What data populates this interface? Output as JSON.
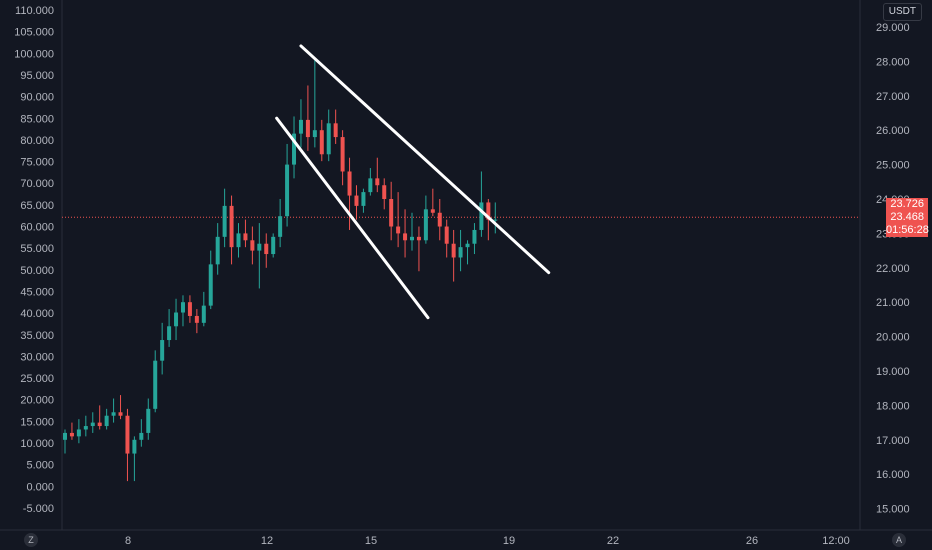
{
  "colors": {
    "background": "#131722",
    "up": "#26a69a",
    "down": "#ef5350",
    "axis_text": "#b2b5be",
    "trendline": "#ffffff",
    "price_line": "#ef5350"
  },
  "left_scale": {
    "ticks": [
      "110.000",
      "105.000",
      "100.000",
      "95.000",
      "90.000",
      "85.000",
      "80.000",
      "75.000",
      "70.000",
      "65.000",
      "60.000",
      "55.000",
      "50.000",
      "45.000",
      "40.000",
      "35.000",
      "30.000",
      "25.000",
      "20.000",
      "15.000",
      "10.000",
      "5.000",
      "0.000",
      "-5.000"
    ]
  },
  "right_scale": {
    "currency_label": "USDT",
    "ticks": [
      "29.000",
      "28.000",
      "27.000",
      "26.000",
      "25.000",
      "24.000",
      "23.000",
      "22.000",
      "21.000",
      "20.000",
      "19.000",
      "18.000",
      "17.000",
      "16.000",
      "15.000"
    ],
    "price_tags": [
      "23.726",
      "23.468",
      "01:56:28"
    ]
  },
  "time_axis": {
    "ticks": [
      "8",
      "12",
      "15",
      "19",
      "22",
      "26",
      "12:00"
    ]
  },
  "buttons": {
    "left_corner": "Z",
    "right_corner": "A"
  },
  "chart_data": {
    "type": "candlestick",
    "title": "",
    "right_ylim": [
      14.5,
      29.6
    ],
    "current_price": 23.468,
    "candles_right_scale": [
      {
        "o": 17.0,
        "h": 17.3,
        "l": 16.6,
        "c": 17.2
      },
      {
        "o": 17.2,
        "h": 17.5,
        "l": 17.0,
        "c": 17.1
      },
      {
        "o": 17.1,
        "h": 17.6,
        "l": 16.9,
        "c": 17.3
      },
      {
        "o": 17.3,
        "h": 17.7,
        "l": 17.1,
        "c": 17.4
      },
      {
        "o": 17.4,
        "h": 17.8,
        "l": 17.2,
        "c": 17.5
      },
      {
        "o": 17.5,
        "h": 18.0,
        "l": 17.3,
        "c": 17.4
      },
      {
        "o": 17.4,
        "h": 17.9,
        "l": 17.3,
        "c": 17.7
      },
      {
        "o": 17.7,
        "h": 18.2,
        "l": 17.5,
        "c": 17.8
      },
      {
        "o": 17.8,
        "h": 18.3,
        "l": 17.6,
        "c": 17.7
      },
      {
        "o": 17.7,
        "h": 17.9,
        "l": 15.8,
        "c": 16.6
      },
      {
        "o": 16.6,
        "h": 17.1,
        "l": 15.8,
        "c": 17.0
      },
      {
        "o": 17.0,
        "h": 17.6,
        "l": 16.8,
        "c": 17.2
      },
      {
        "o": 17.2,
        "h": 18.2,
        "l": 17.0,
        "c": 17.9
      },
      {
        "o": 17.9,
        "h": 19.6,
        "l": 17.8,
        "c": 19.3
      },
      {
        "o": 19.3,
        "h": 20.4,
        "l": 18.9,
        "c": 19.9
      },
      {
        "o": 19.9,
        "h": 20.8,
        "l": 19.7,
        "c": 20.3
      },
      {
        "o": 20.3,
        "h": 21.1,
        "l": 19.9,
        "c": 20.7
      },
      {
        "o": 20.7,
        "h": 21.2,
        "l": 20.3,
        "c": 21.0
      },
      {
        "o": 21.0,
        "h": 21.2,
        "l": 20.4,
        "c": 20.6
      },
      {
        "o": 20.6,
        "h": 20.8,
        "l": 20.1,
        "c": 20.4
      },
      {
        "o": 20.4,
        "h": 21.3,
        "l": 20.3,
        "c": 20.9
      },
      {
        "o": 20.9,
        "h": 22.5,
        "l": 20.8,
        "c": 22.1
      },
      {
        "o": 22.1,
        "h": 23.3,
        "l": 21.8,
        "c": 22.9
      },
      {
        "o": 22.9,
        "h": 24.3,
        "l": 22.6,
        "c": 23.8
      },
      {
        "o": 23.8,
        "h": 24.1,
        "l": 22.1,
        "c": 22.6
      },
      {
        "o": 22.6,
        "h": 23.3,
        "l": 22.3,
        "c": 23.0
      },
      {
        "o": 23.0,
        "h": 23.4,
        "l": 22.6,
        "c": 22.8
      },
      {
        "o": 22.8,
        "h": 23.2,
        "l": 22.1,
        "c": 22.5
      },
      {
        "o": 22.5,
        "h": 23.3,
        "l": 21.4,
        "c": 22.7
      },
      {
        "o": 22.7,
        "h": 23.0,
        "l": 22.0,
        "c": 22.4
      },
      {
        "o": 22.4,
        "h": 23.0,
        "l": 22.3,
        "c": 22.9
      },
      {
        "o": 22.9,
        "h": 24.0,
        "l": 22.6,
        "c": 23.5
      },
      {
        "o": 23.5,
        "h": 25.6,
        "l": 23.2,
        "c": 25.0
      },
      {
        "o": 25.0,
        "h": 26.4,
        "l": 24.6,
        "c": 25.9
      },
      {
        "o": 25.9,
        "h": 26.9,
        "l": 25.5,
        "c": 26.3
      },
      {
        "o": 26.3,
        "h": 27.3,
        "l": 25.4,
        "c": 25.8
      },
      {
        "o": 25.8,
        "h": 28.1,
        "l": 25.5,
        "c": 26.0
      },
      {
        "o": 26.0,
        "h": 26.3,
        "l": 25.1,
        "c": 25.3
      },
      {
        "o": 25.3,
        "h": 26.6,
        "l": 25.1,
        "c": 26.2
      },
      {
        "o": 26.2,
        "h": 26.6,
        "l": 25.6,
        "c": 25.8
      },
      {
        "o": 25.8,
        "h": 26.0,
        "l": 24.4,
        "c": 24.8
      },
      {
        "o": 24.8,
        "h": 25.2,
        "l": 23.1,
        "c": 24.1
      },
      {
        "o": 24.1,
        "h": 24.4,
        "l": 23.4,
        "c": 23.8
      },
      {
        "o": 23.8,
        "h": 24.3,
        "l": 23.6,
        "c": 24.2
      },
      {
        "o": 24.2,
        "h": 24.9,
        "l": 24.1,
        "c": 24.6
      },
      {
        "o": 24.6,
        "h": 25.2,
        "l": 24.2,
        "c": 24.4
      },
      {
        "o": 24.4,
        "h": 24.6,
        "l": 23.7,
        "c": 24.0
      },
      {
        "o": 24.0,
        "h": 24.5,
        "l": 22.8,
        "c": 23.2
      },
      {
        "o": 23.2,
        "h": 24.2,
        "l": 22.6,
        "c": 23.0
      },
      {
        "o": 23.0,
        "h": 23.7,
        "l": 22.3,
        "c": 22.8
      },
      {
        "o": 22.8,
        "h": 23.6,
        "l": 22.5,
        "c": 22.9
      },
      {
        "o": 22.9,
        "h": 23.2,
        "l": 21.9,
        "c": 22.8
      },
      {
        "o": 22.8,
        "h": 24.1,
        "l": 22.7,
        "c": 23.7
      },
      {
        "o": 23.7,
        "h": 24.3,
        "l": 23.5,
        "c": 23.6
      },
      {
        "o": 23.6,
        "h": 24.0,
        "l": 22.8,
        "c": 23.2
      },
      {
        "o": 23.2,
        "h": 23.4,
        "l": 22.3,
        "c": 22.7
      },
      {
        "o": 22.7,
        "h": 23.1,
        "l": 21.6,
        "c": 22.3
      },
      {
        "o": 22.3,
        "h": 23.1,
        "l": 21.9,
        "c": 22.6
      },
      {
        "o": 22.6,
        "h": 22.8,
        "l": 22.1,
        "c": 22.7
      },
      {
        "o": 22.7,
        "h": 23.3,
        "l": 22.4,
        "c": 23.1
      },
      {
        "o": 23.1,
        "h": 24.8,
        "l": 22.9,
        "c": 23.9
      },
      {
        "o": 23.9,
        "h": 24.0,
        "l": 22.8,
        "c": 23.4
      },
      {
        "o": 23.4,
        "h": 23.9,
        "l": 23.0,
        "c": 23.4
      }
    ],
    "trendlines": [
      {
        "from": {
          "index": 34.0,
          "value": 28.45
        },
        "to": {
          "index": 69.7,
          "value": 21.86
        }
      },
      {
        "from": {
          "index": 30.5,
          "value": 26.35
        },
        "to": {
          "index": 52.3,
          "value": 20.55
        }
      }
    ]
  }
}
